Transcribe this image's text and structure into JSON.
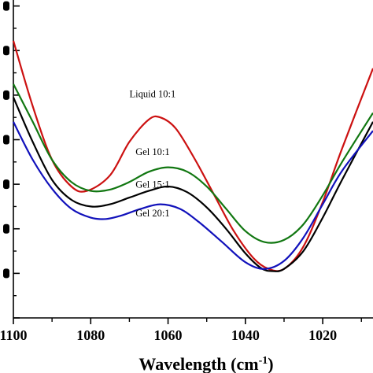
{
  "chart_data": {
    "type": "line",
    "xlabel": "Wavelength (cm",
    "xlabel_sup": "-1",
    "xlabel_close": ")",
    "x_reversed": true,
    "xlim": [
      1100,
      1007
    ],
    "ylim": [
      0,
      8
    ],
    "x_ticks": [
      {
        "value": 1100,
        "label": "1100"
      },
      {
        "value": 1080,
        "label": "1080"
      },
      {
        "value": 1060,
        "label": "1060"
      },
      {
        "value": 1040,
        "label": "1040"
      },
      {
        "value": 1020,
        "label": "1020"
      }
    ],
    "y_tick_values": [
      0,
      1,
      2,
      3,
      4,
      5,
      6,
      7,
      8
    ],
    "series": [
      {
        "name": "Liquid 10:1",
        "color": "#cc1111",
        "x": [
          1100,
          1095,
          1090,
          1085,
          1081,
          1075,
          1070,
          1065,
          1062,
          1058,
          1053,
          1048,
          1043,
          1038,
          1034,
          1030,
          1025,
          1020,
          1015,
          1007
        ],
        "y": [
          6.22,
          4.75,
          3.55,
          2.95,
          2.85,
          3.2,
          3.95,
          4.45,
          4.5,
          4.25,
          3.55,
          2.75,
          1.95,
          1.35,
          1.1,
          1.1,
          1.6,
          2.6,
          3.8,
          5.6
        ]
      },
      {
        "name": "Gel 10:1",
        "color": "#117711",
        "x": [
          1100,
          1095,
          1090,
          1085,
          1080,
          1075,
          1070,
          1065,
          1060,
          1055,
          1050,
          1045,
          1040,
          1035,
          1030,
          1025,
          1020,
          1015,
          1007
        ],
        "y": [
          5.25,
          4.4,
          3.55,
          3.05,
          2.85,
          2.88,
          3.05,
          3.28,
          3.38,
          3.28,
          2.95,
          2.45,
          1.95,
          1.7,
          1.75,
          2.1,
          2.75,
          3.5,
          4.6
        ]
      },
      {
        "name": "Gel 15:1",
        "color": "#000000",
        "x": [
          1100,
          1095,
          1090,
          1085,
          1080,
          1075,
          1070,
          1065,
          1060,
          1055,
          1050,
          1045,
          1040,
          1036,
          1033,
          1030,
          1025,
          1020,
          1015,
          1007
        ],
        "y": [
          4.95,
          3.95,
          3.1,
          2.65,
          2.5,
          2.55,
          2.7,
          2.85,
          2.95,
          2.82,
          2.48,
          2.0,
          1.45,
          1.12,
          1.05,
          1.1,
          1.5,
          2.25,
          3.1,
          4.4
        ]
      },
      {
        "name": "Gel 20:1",
        "color": "#1111bb",
        "x": [
          1100,
          1095,
          1090,
          1085,
          1080,
          1076,
          1072,
          1067,
          1062,
          1057,
          1052,
          1046,
          1040,
          1035,
          1030,
          1025,
          1020,
          1015,
          1007
        ],
        "y": [
          4.4,
          3.55,
          2.9,
          2.45,
          2.25,
          2.22,
          2.3,
          2.45,
          2.55,
          2.45,
          2.15,
          1.7,
          1.25,
          1.1,
          1.28,
          1.8,
          2.55,
          3.3,
          4.2
        ]
      }
    ],
    "annotations": [
      {
        "text": "Liquid 10:1",
        "x": 1064,
        "y": 4.95
      },
      {
        "text": "Gel 10:1",
        "x": 1064,
        "y": 3.66
      },
      {
        "text": "Gel 15:1",
        "x": 1064,
        "y": 2.92
      },
      {
        "text": "Gel 20:1",
        "x": 1064,
        "y": 2.28
      }
    ]
  }
}
